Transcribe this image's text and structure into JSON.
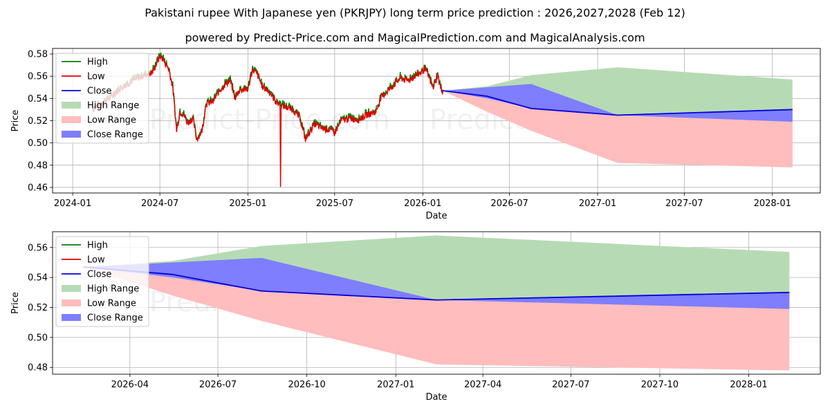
{
  "title": "Pakistani rupee With Japanese yen (PKRJPY) long term price prediction : 2026,2027,2028 (Feb 12)",
  "subtitle": "powered by Predict-Price.com and MagicalPrediction.com and MagicalAnalysis.com",
  "watermark": "Predict-Price.com",
  "colors": {
    "high": "#008000",
    "low": "#e00000",
    "close": "#0000dd",
    "high_range": "#b6dbb4",
    "low_range": "#ffbdbd",
    "close_range": "#7e7efe",
    "grid": "#b0b0b0"
  },
  "chart_data": [
    {
      "type": "line",
      "panel": "top",
      "xlabel": "Date",
      "ylabel": "Price",
      "xlim": [
        "2023-11-20",
        "2028-04-10"
      ],
      "ylim": [
        0.455,
        0.585
      ],
      "xticks": [
        "2024-01",
        "2024-07",
        "2025-01",
        "2025-07",
        "2026-01",
        "2026-07",
        "2027-01",
        "2027-07",
        "2028-01"
      ],
      "yticks": [
        0.46,
        0.48,
        0.5,
        0.52,
        0.54,
        0.56,
        0.58
      ],
      "ytick_labels": [
        "0.46",
        "0.48",
        "0.50",
        "0.52",
        "0.54",
        "0.56",
        "0.58"
      ],
      "legend": [
        "High",
        "Low",
        "Close",
        "High Range",
        "Low Range",
        "Close Range"
      ],
      "legend_position": "top-left",
      "history_close": [
        [
          "2024-02-12",
          0.53
        ],
        [
          "2024-03-01",
          0.535
        ],
        [
          "2024-03-20",
          0.541
        ],
        [
          "2024-04-10",
          0.549
        ],
        [
          "2024-05-01",
          0.555
        ],
        [
          "2024-05-25",
          0.56
        ],
        [
          "2024-06-15",
          0.563
        ],
        [
          "2024-07-01",
          0.578
        ],
        [
          "2024-07-08",
          0.575
        ],
        [
          "2024-07-20",
          0.566
        ],
        [
          "2024-07-28",
          0.55
        ],
        [
          "2024-08-05",
          0.511
        ],
        [
          "2024-08-12",
          0.528
        ],
        [
          "2024-08-20",
          0.525
        ],
        [
          "2024-08-28",
          0.518
        ],
        [
          "2024-09-08",
          0.522
        ],
        [
          "2024-09-16",
          0.503
        ],
        [
          "2024-09-28",
          0.512
        ],
        [
          "2024-10-05",
          0.535
        ],
        [
          "2024-10-20",
          0.537
        ],
        [
          "2024-11-01",
          0.546
        ],
        [
          "2024-11-15",
          0.553
        ],
        [
          "2024-11-25",
          0.556
        ],
        [
          "2024-12-05",
          0.54
        ],
        [
          "2024-12-15",
          0.548
        ],
        [
          "2025-01-01",
          0.548
        ],
        [
          "2025-01-10",
          0.566
        ],
        [
          "2025-01-20",
          0.562
        ],
        [
          "2025-02-01",
          0.55
        ],
        [
          "2025-02-15",
          0.546
        ],
        [
          "2025-02-28",
          0.537
        ],
        [
          "2025-03-10",
          0.534
        ],
        [
          "2025-03-28",
          0.531
        ],
        [
          "2025-04-05",
          0.53
        ],
        [
          "2025-04-20",
          0.522
        ],
        [
          "2025-05-01",
          0.503
        ],
        [
          "2025-05-10",
          0.51
        ],
        [
          "2025-05-20",
          0.517
        ],
        [
          "2025-06-05",
          0.513
        ],
        [
          "2025-06-20",
          0.512
        ],
        [
          "2025-07-01",
          0.509
        ],
        [
          "2025-07-15",
          0.52
        ],
        [
          "2025-08-01",
          0.522
        ],
        [
          "2025-08-20",
          0.521
        ],
        [
          "2025-09-05",
          0.525
        ],
        [
          "2025-09-25",
          0.528
        ],
        [
          "2025-10-05",
          0.54
        ],
        [
          "2025-10-20",
          0.547
        ],
        [
          "2025-11-01",
          0.552
        ],
        [
          "2025-11-15",
          0.558
        ],
        [
          "2025-12-01",
          0.556
        ],
        [
          "2025-12-15",
          0.56
        ],
        [
          "2025-12-28",
          0.563
        ],
        [
          "2026-01-05",
          0.567
        ],
        [
          "2026-01-15",
          0.558
        ],
        [
          "2026-01-22",
          0.549
        ],
        [
          "2026-02-01",
          0.561
        ],
        [
          "2026-02-08",
          0.548
        ],
        [
          "2026-02-12",
          0.547
        ]
      ],
      "forecast": {
        "dates": [
          "2026-02-12",
          "2026-05-15",
          "2026-08-15",
          "2027-02-12",
          "2028-02-12"
        ],
        "close": [
          0.547,
          0.542,
          0.531,
          0.525,
          0.53
        ],
        "high": [
          0.547,
          0.551,
          0.561,
          0.568,
          0.557
        ],
        "low": [
          0.547,
          0.528,
          0.511,
          0.482,
          0.478
        ],
        "close_upper": [
          0.547,
          0.55,
          0.553,
          0.525,
          0.53
        ],
        "close_lower": [
          0.547,
          0.54,
          0.531,
          0.525,
          0.519
        ]
      }
    },
    {
      "type": "line",
      "panel": "bottom",
      "xlabel": "Date",
      "ylabel": "Price",
      "xlim": [
        "2026-01-11",
        "2028-03-15"
      ],
      "ylim": [
        0.4755,
        0.5705
      ],
      "xticks": [
        "2026-04",
        "2026-07",
        "2026-10",
        "2027-01",
        "2027-04",
        "2027-07",
        "2027-10",
        "2028-01"
      ],
      "yticks": [
        0.48,
        0.5,
        0.52,
        0.54,
        0.56
      ],
      "ytick_labels": [
        "0.48",
        "0.50",
        "0.52",
        "0.54",
        "0.56"
      ],
      "legend": [
        "High",
        "Low",
        "Close",
        "High Range",
        "Low Range",
        "Close Range"
      ],
      "legend_position": "top-left",
      "forecast": {
        "dates": [
          "2026-02-12",
          "2026-05-15",
          "2026-08-15",
          "2027-02-12",
          "2028-02-12"
        ],
        "close": [
          0.547,
          0.542,
          0.531,
          0.525,
          0.53
        ],
        "high": [
          0.547,
          0.551,
          0.561,
          0.568,
          0.557
        ],
        "low": [
          0.547,
          0.528,
          0.511,
          0.482,
          0.478
        ],
        "close_upper": [
          0.547,
          0.55,
          0.553,
          0.525,
          0.53
        ],
        "close_lower": [
          0.547,
          0.54,
          0.531,
          0.525,
          0.519
        ]
      }
    }
  ]
}
